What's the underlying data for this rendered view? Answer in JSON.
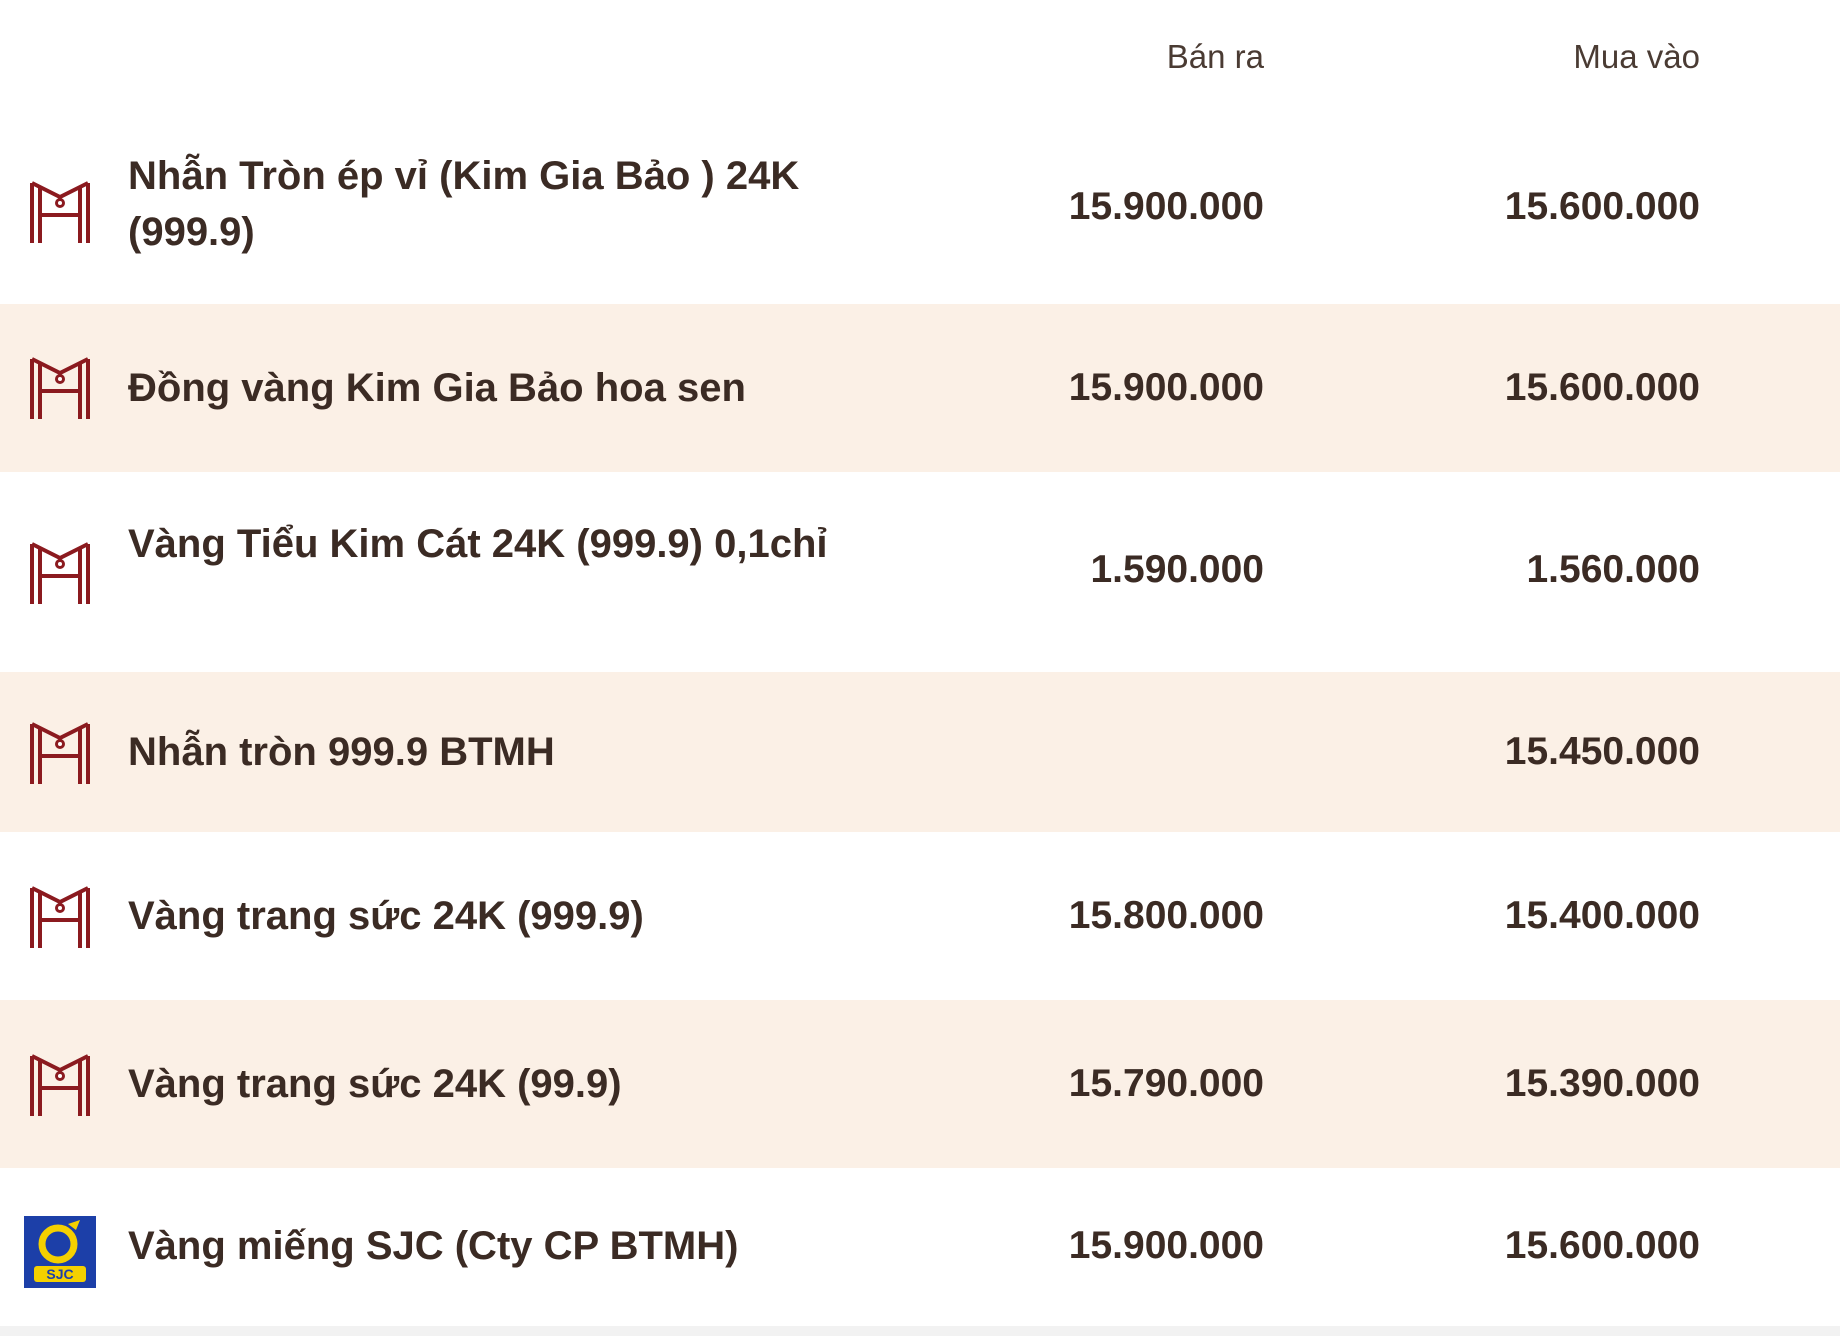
{
  "header": {
    "sell_label": "Bán ra",
    "buy_label": "Mua vào"
  },
  "rows": [
    {
      "logo_icon": "btmh-logo-icon",
      "name": "Nhẫn Tròn ép vỉ (Kim Gia Bảo ) 24K (999.9)",
      "sell": "15.900.000",
      "buy": "15.600.000"
    },
    {
      "logo_icon": "btmh-logo-icon",
      "name": "Đồng vàng Kim Gia Bảo hoa sen",
      "sell": "15.900.000",
      "buy": "15.600.000"
    },
    {
      "logo_icon": "btmh-logo-icon",
      "name": "Vàng Tiểu Kim Cát 24K (999.9) 0,1chỉ",
      "sell": "1.590.000",
      "buy": "1.560.000"
    },
    {
      "logo_icon": "btmh-logo-icon",
      "name": "Nhẫn tròn 999.9 BTMH",
      "sell": "",
      "buy": "15.450.000"
    },
    {
      "logo_icon": "btmh-logo-icon",
      "name": "Vàng trang sức 24K (999.9)",
      "sell": "15.800.000",
      "buy": "15.400.000"
    },
    {
      "logo_icon": "btmh-logo-icon",
      "name": "Vàng trang sức 24K (99.9)",
      "sell": "15.790.000",
      "buy": "15.390.000"
    },
    {
      "logo_icon": "sjc-logo-icon",
      "name": "Vàng miếng SJC (Cty CP BTMH)",
      "sell": "15.900.000",
      "buy": "15.600.000"
    }
  ],
  "colors": {
    "text": "#3b2b24",
    "alt_row": "#fbf0e6",
    "btmh_logo": "#8b1a1f",
    "sjc_blue": "#1c3fa8",
    "sjc_yellow": "#f4d000"
  }
}
